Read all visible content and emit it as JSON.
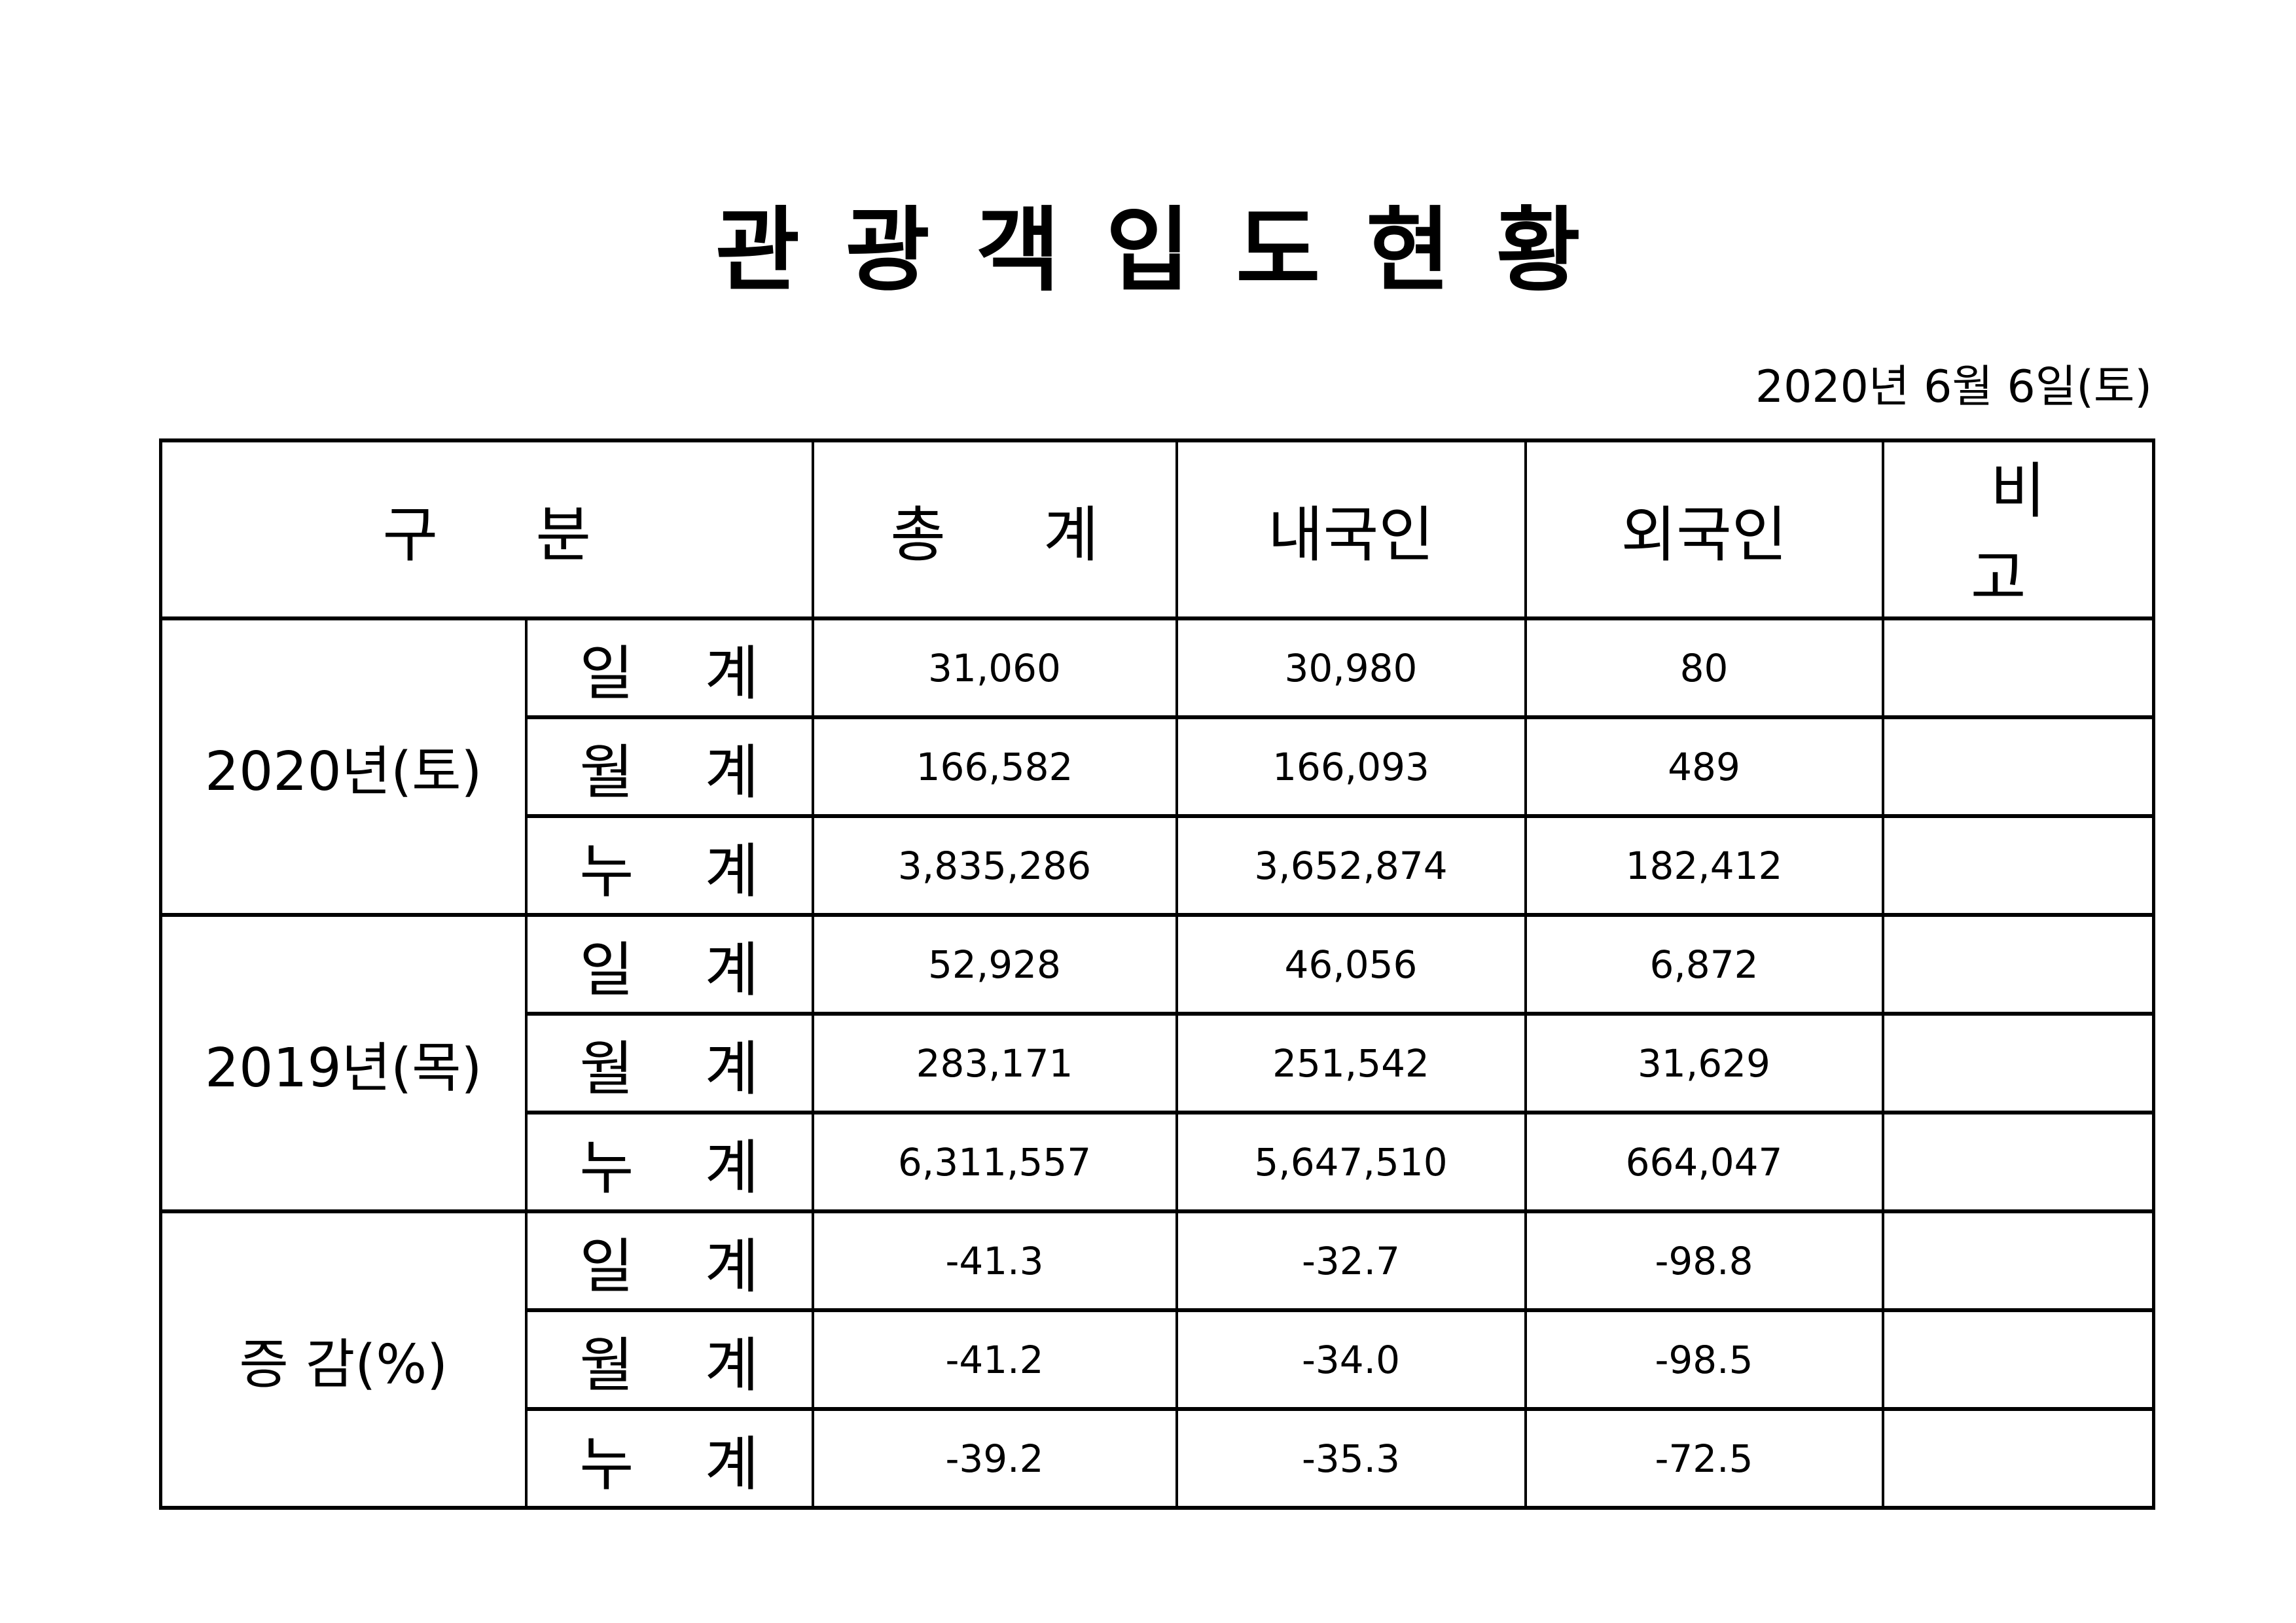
{
  "title": "관광객입도현황",
  "date": "2020년  6월  6일(토)",
  "header": {
    "category": "구  분",
    "total": "총  계",
    "domestic": "내국인",
    "foreign": "외국인",
    "remarks": "비  고"
  },
  "groups": [
    {
      "label": "2020년(토)",
      "rows": [
        {
          "label": "일 계",
          "total": "31,060",
          "domestic": "30,980",
          "foreign": "80",
          "remarks": ""
        },
        {
          "label": "월 계",
          "total": "166,582",
          "domestic": "166,093",
          "foreign": "489",
          "remarks": ""
        },
        {
          "label": "누 계",
          "total": "3,835,286",
          "domestic": "3,652,874",
          "foreign": "182,412",
          "remarks": ""
        }
      ]
    },
    {
      "label": "2019년(목)",
      "rows": [
        {
          "label": "일 계",
          "total": "52,928",
          "domestic": "46,056",
          "foreign": "6,872",
          "remarks": ""
        },
        {
          "label": "월 계",
          "total": "283,171",
          "domestic": "251,542",
          "foreign": "31,629",
          "remarks": ""
        },
        {
          "label": "누 계",
          "total": "6,311,557",
          "domestic": "5,647,510",
          "foreign": "664,047",
          "remarks": ""
        }
      ]
    },
    {
      "label": "증 감(%)",
      "rows": [
        {
          "label": "일 계",
          "total": "-41.3",
          "domestic": "-32.7",
          "foreign": "-98.8",
          "remarks": ""
        },
        {
          "label": "월 계",
          "total": "-41.2",
          "domestic": "-34.0",
          "foreign": "-98.5",
          "remarks": ""
        },
        {
          "label": "누 계",
          "total": "-39.2",
          "domestic": "-35.3",
          "foreign": "-72.5",
          "remarks": ""
        }
      ]
    }
  ]
}
